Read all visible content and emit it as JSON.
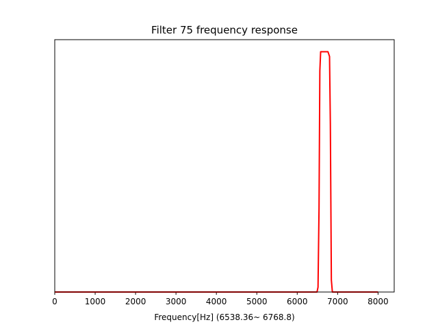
{
  "chart_data": {
    "type": "line",
    "title": "Filter 75 frequency response",
    "xlabel": "Frequency[Hz] (6538.36~ 6768.8)",
    "ylabel": "",
    "xlim": [
      0,
      8400
    ],
    "ylim": [
      0,
      1.05
    ],
    "xticks": [
      0,
      1000,
      2000,
      3000,
      4000,
      5000,
      6000,
      7000,
      8000
    ],
    "xtick_labels": [
      "0",
      "1000",
      "2000",
      "3000",
      "4000",
      "5000",
      "6000",
      "7000",
      "8000"
    ],
    "y_ticks_visible": false,
    "grid": false,
    "legend": "none",
    "series": [
      {
        "color": "#ff0000",
        "x": [
          0,
          6490,
          6515,
          6540,
          6560,
          6580,
          6600,
          6700,
          6760,
          6800,
          6820,
          6845,
          6870,
          8000
        ],
        "y": [
          0,
          0,
          0.02,
          0.35,
          0.92,
          1.0,
          1.0,
          1.0,
          1.0,
          0.98,
          0.7,
          0.05,
          0,
          0
        ]
      }
    ]
  }
}
